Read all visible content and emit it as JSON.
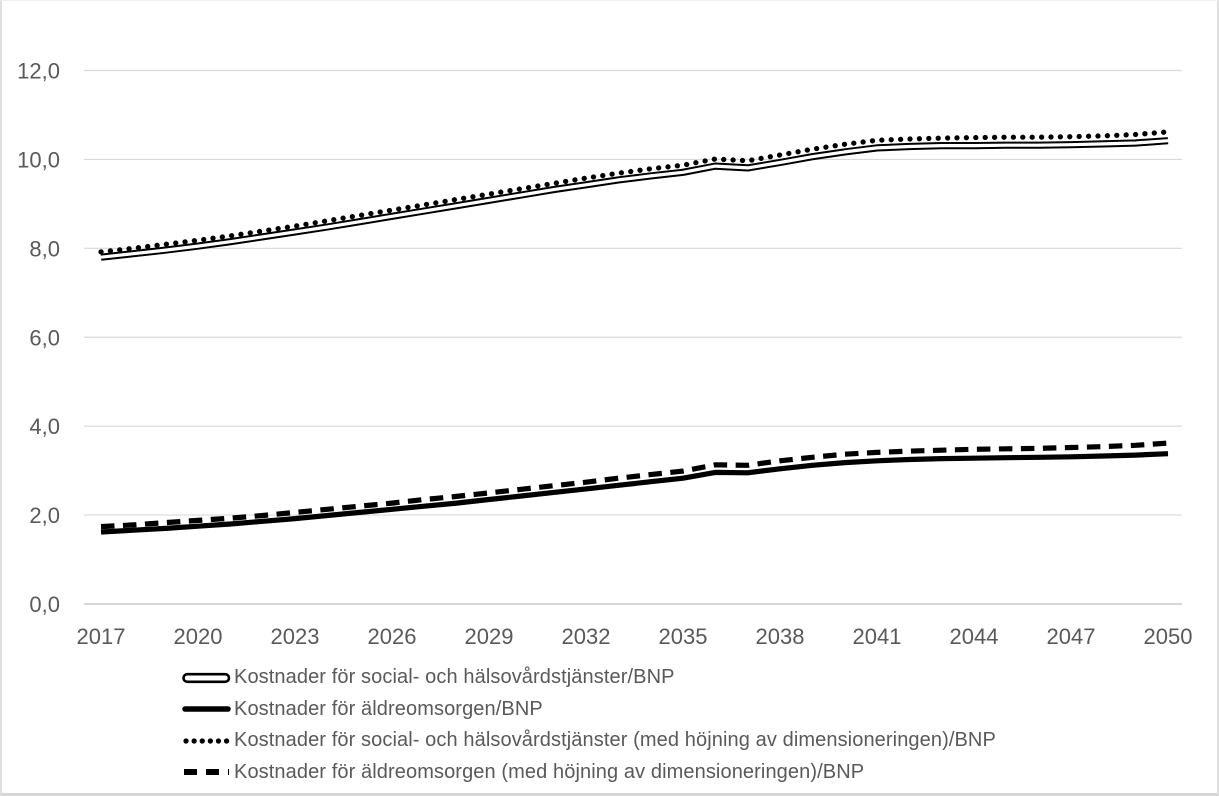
{
  "chart_data": {
    "type": "line",
    "title": "",
    "xlabel": "",
    "ylabel": "",
    "xlim": [
      2017,
      2050
    ],
    "ylim": [
      0,
      12
    ],
    "grid": "horizontal",
    "legend_position": "bottom-left",
    "x": [
      2017,
      2018,
      2019,
      2020,
      2021,
      2022,
      2023,
      2024,
      2025,
      2026,
      2027,
      2028,
      2029,
      2030,
      2031,
      2032,
      2033,
      2034,
      2035,
      2036,
      2037,
      2038,
      2039,
      2040,
      2041,
      2042,
      2043,
      2044,
      2045,
      2046,
      2047,
      2048,
      2049,
      2050
    ],
    "x_tick_labels": [
      "2017",
      "2020",
      "2023",
      "2026",
      "2029",
      "2032",
      "2035",
      "2038",
      "2041",
      "2044",
      "2047",
      "2050"
    ],
    "y_tick_labels": [
      "12,0",
      "10,0",
      "8,0",
      "6,0",
      "4,0",
      "2,0",
      "0,0"
    ],
    "y_tick_values": [
      12,
      10,
      8,
      6,
      4,
      2,
      0
    ],
    "series": [
      {
        "name": "Kostnader för social- och hälsovårdstjänster/BNP",
        "style": "double-line",
        "color": "#000000",
        "values": [
          7.8,
          7.88,
          7.96,
          8.05,
          8.15,
          8.26,
          8.37,
          8.48,
          8.6,
          8.72,
          8.84,
          8.96,
          9.08,
          9.2,
          9.32,
          9.43,
          9.54,
          9.63,
          9.71,
          9.85,
          9.81,
          9.93,
          10.06,
          10.17,
          10.26,
          10.29,
          10.31,
          10.31,
          10.32,
          10.32,
          10.33,
          10.35,
          10.37,
          10.42
        ]
      },
      {
        "name": "Kostnader för äldreomsorgen/BNP",
        "style": "solid",
        "color": "#000000",
        "values": [
          1.62,
          1.66,
          1.7,
          1.75,
          1.8,
          1.86,
          1.92,
          1.99,
          2.06,
          2.13,
          2.2,
          2.27,
          2.35,
          2.43,
          2.51,
          2.59,
          2.67,
          2.75,
          2.83,
          2.96,
          2.95,
          3.04,
          3.12,
          3.18,
          3.22,
          3.25,
          3.27,
          3.28,
          3.29,
          3.3,
          3.31,
          3.33,
          3.35,
          3.38
        ]
      },
      {
        "name": "Kostnader för social- och hälsovårdstjänster (med höjning av dimensioneringen)/BNP",
        "style": "dotted",
        "color": "#000000",
        "values": [
          7.92,
          8.0,
          8.09,
          8.18,
          8.28,
          8.39,
          8.5,
          8.62,
          8.74,
          8.86,
          8.98,
          9.1,
          9.22,
          9.34,
          9.46,
          9.58,
          9.69,
          9.79,
          9.87,
          10.01,
          9.97,
          10.1,
          10.23,
          10.34,
          10.43,
          10.46,
          10.48,
          10.49,
          10.5,
          10.5,
          10.51,
          10.53,
          10.56,
          10.62
        ]
      },
      {
        "name": "Kostnader för äldreomsorgen (med höjning av dimensioneringen)/BNP",
        "style": "dashed",
        "color": "#000000",
        "values": [
          1.74,
          1.78,
          1.83,
          1.88,
          1.93,
          1.99,
          2.06,
          2.13,
          2.2,
          2.27,
          2.35,
          2.42,
          2.5,
          2.58,
          2.66,
          2.74,
          2.83,
          2.91,
          2.99,
          3.13,
          3.12,
          3.22,
          3.3,
          3.37,
          3.41,
          3.44,
          3.46,
          3.48,
          3.49,
          3.5,
          3.52,
          3.54,
          3.57,
          3.62
        ]
      }
    ]
  },
  "colors": {
    "background": "#ffffff",
    "gridline": "#d9d9d9",
    "axis_line": "#c8c8c8",
    "axis_text": "#595959",
    "legend_text": "#595959",
    "series_line": "#000000",
    "frame_border": "#dedede"
  }
}
